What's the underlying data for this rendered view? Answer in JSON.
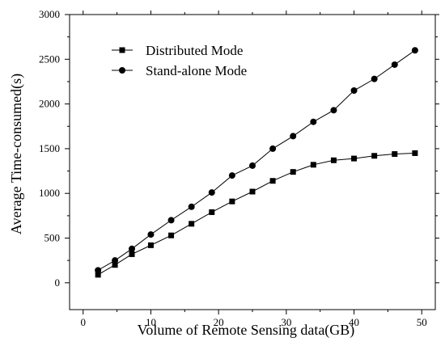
{
  "chart_data": {
    "type": "line",
    "title": "",
    "xlabel": "Volume of Remote Sensing data(GB)",
    "ylabel": "Average Time-consumed(s)",
    "xlim": [
      -2,
      52
    ],
    "ylim": [
      -300,
      3000
    ],
    "xticks": [
      0,
      10,
      20,
      30,
      40,
      50
    ],
    "yticks": [
      0,
      500,
      1000,
      1500,
      2000,
      2500,
      3000
    ],
    "grid": false,
    "legend_position": "top-left",
    "x": [
      2.2,
      4.7,
      7.2,
      10,
      13,
      16,
      19,
      22,
      25,
      28,
      31,
      34,
      37,
      40,
      43,
      46,
      49
    ],
    "series": [
      {
        "name": "Distributed Mode",
        "marker": "square",
        "values": [
          90,
          200,
          320,
          420,
          530,
          660,
          790,
          910,
          1020,
          1140,
          1240,
          1320,
          1370,
          1390,
          1420,
          1440,
          1450
        ]
      },
      {
        "name": "Stand-alone Mode",
        "marker": "circle",
        "values": [
          140,
          250,
          380,
          540,
          700,
          850,
          1010,
          1200,
          1310,
          1500,
          1640,
          1800,
          1930,
          2150,
          2280,
          2440,
          2600
        ]
      }
    ],
    "colors": {
      "line": "#000000",
      "axis": "#000000"
    }
  }
}
